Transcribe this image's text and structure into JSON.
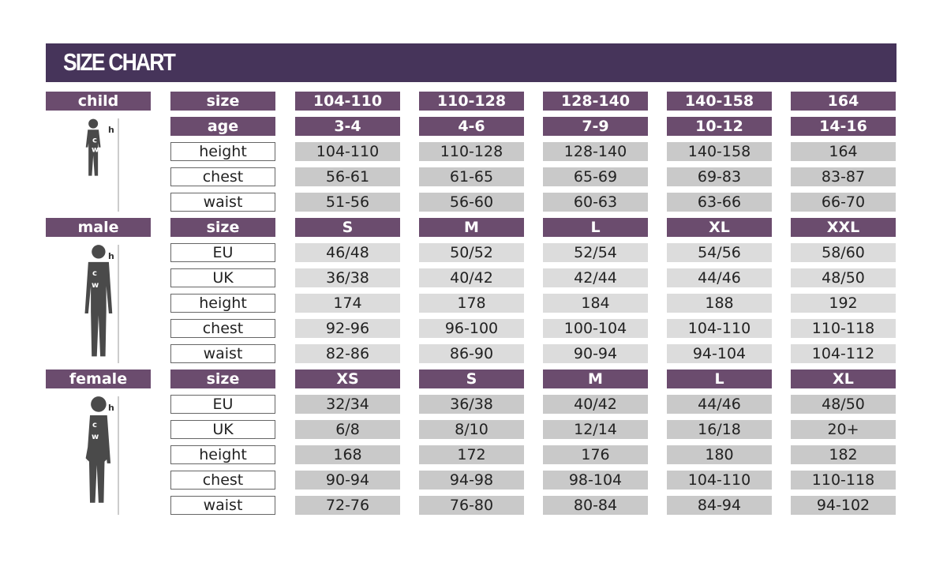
{
  "title": "SIZE CHART",
  "colors": {
    "header": "#46345a",
    "accent": "#6b4c6e",
    "cell": "#c9c9c9"
  },
  "sections": [
    {
      "name": "child",
      "figure_labels": {
        "h": "h",
        "c": "c",
        "w": "w"
      },
      "header_rows": [
        {
          "label": "size",
          "values": [
            "104-110",
            "110-128",
            "128-140",
            "140-158",
            "164"
          ]
        },
        {
          "label": "age",
          "values": [
            "3-4",
            "4-6",
            "7-9",
            "10-12",
            "14-16"
          ]
        }
      ],
      "rows": [
        {
          "label": "height",
          "values": [
            "104-110",
            "110-128",
            "128-140",
            "140-158",
            "164"
          ]
        },
        {
          "label": "chest",
          "values": [
            "56-61",
            "61-65",
            "65-69",
            "69-83",
            "83-87"
          ]
        },
        {
          "label": "waist",
          "values": [
            "51-56",
            "56-60",
            "60-63",
            "63-66",
            "66-70"
          ]
        }
      ]
    },
    {
      "name": "male",
      "figure_labels": {
        "h": "h",
        "c": "c",
        "w": "w"
      },
      "header_rows": [
        {
          "label": "size",
          "values": [
            "S",
            "M",
            "L",
            "XL",
            "XXL"
          ]
        }
      ],
      "rows": [
        {
          "label": "EU",
          "values": [
            "46/48",
            "50/52",
            "52/54",
            "54/56",
            "58/60"
          ]
        },
        {
          "label": "UK",
          "values": [
            "36/38",
            "40/42",
            "42/44",
            "44/46",
            "48/50"
          ]
        },
        {
          "label": "height",
          "values": [
            "174",
            "178",
            "184",
            "188",
            "192"
          ]
        },
        {
          "label": "chest",
          "values": [
            "92-96",
            "96-100",
            "100-104",
            "104-110",
            "110-118"
          ]
        },
        {
          "label": "waist",
          "values": [
            "82-86",
            "86-90",
            "90-94",
            "94-104",
            "104-112"
          ]
        }
      ]
    },
    {
      "name": "female",
      "figure_labels": {
        "h": "h",
        "c": "c",
        "w": "w"
      },
      "header_rows": [
        {
          "label": "size",
          "values": [
            "XS",
            "S",
            "M",
            "L",
            "XL"
          ]
        }
      ],
      "rows": [
        {
          "label": "EU",
          "values": [
            "32/34",
            "36/38",
            "40/42",
            "44/46",
            "48/50"
          ]
        },
        {
          "label": "UK",
          "values": [
            "6/8",
            "8/10",
            "12/14",
            "16/18",
            "20+"
          ]
        },
        {
          "label": "height",
          "values": [
            "168",
            "172",
            "176",
            "180",
            "182"
          ]
        },
        {
          "label": "chest",
          "values": [
            "90-94",
            "94-98",
            "98-104",
            "104-110",
            "110-118"
          ]
        },
        {
          "label": "waist",
          "values": [
            "72-76",
            "76-80",
            "80-84",
            "84-94",
            "94-102"
          ]
        }
      ]
    }
  ]
}
